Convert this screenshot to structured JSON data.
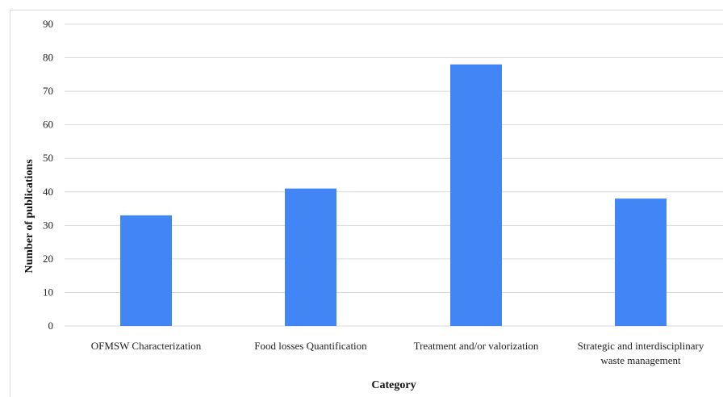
{
  "chart_data": {
    "type": "bar",
    "categories": [
      [
        "OFMSW Characterization"
      ],
      [
        "Food losses Quantification"
      ],
      [
        "Treatment and/or valorization"
      ],
      [
        "Strategic and interdisciplinary",
        "waste management"
      ]
    ],
    "values": [
      33,
      41,
      78,
      38
    ],
    "xlabel": "Category",
    "ylabel": "Number of publications",
    "ylim": [
      0,
      90
    ],
    "yticks": [
      0,
      10,
      20,
      30,
      40,
      50,
      60,
      70,
      80,
      90
    ],
    "grid": true,
    "bar_color": "#4285f4",
    "grid_color": "#d9d9d9"
  }
}
